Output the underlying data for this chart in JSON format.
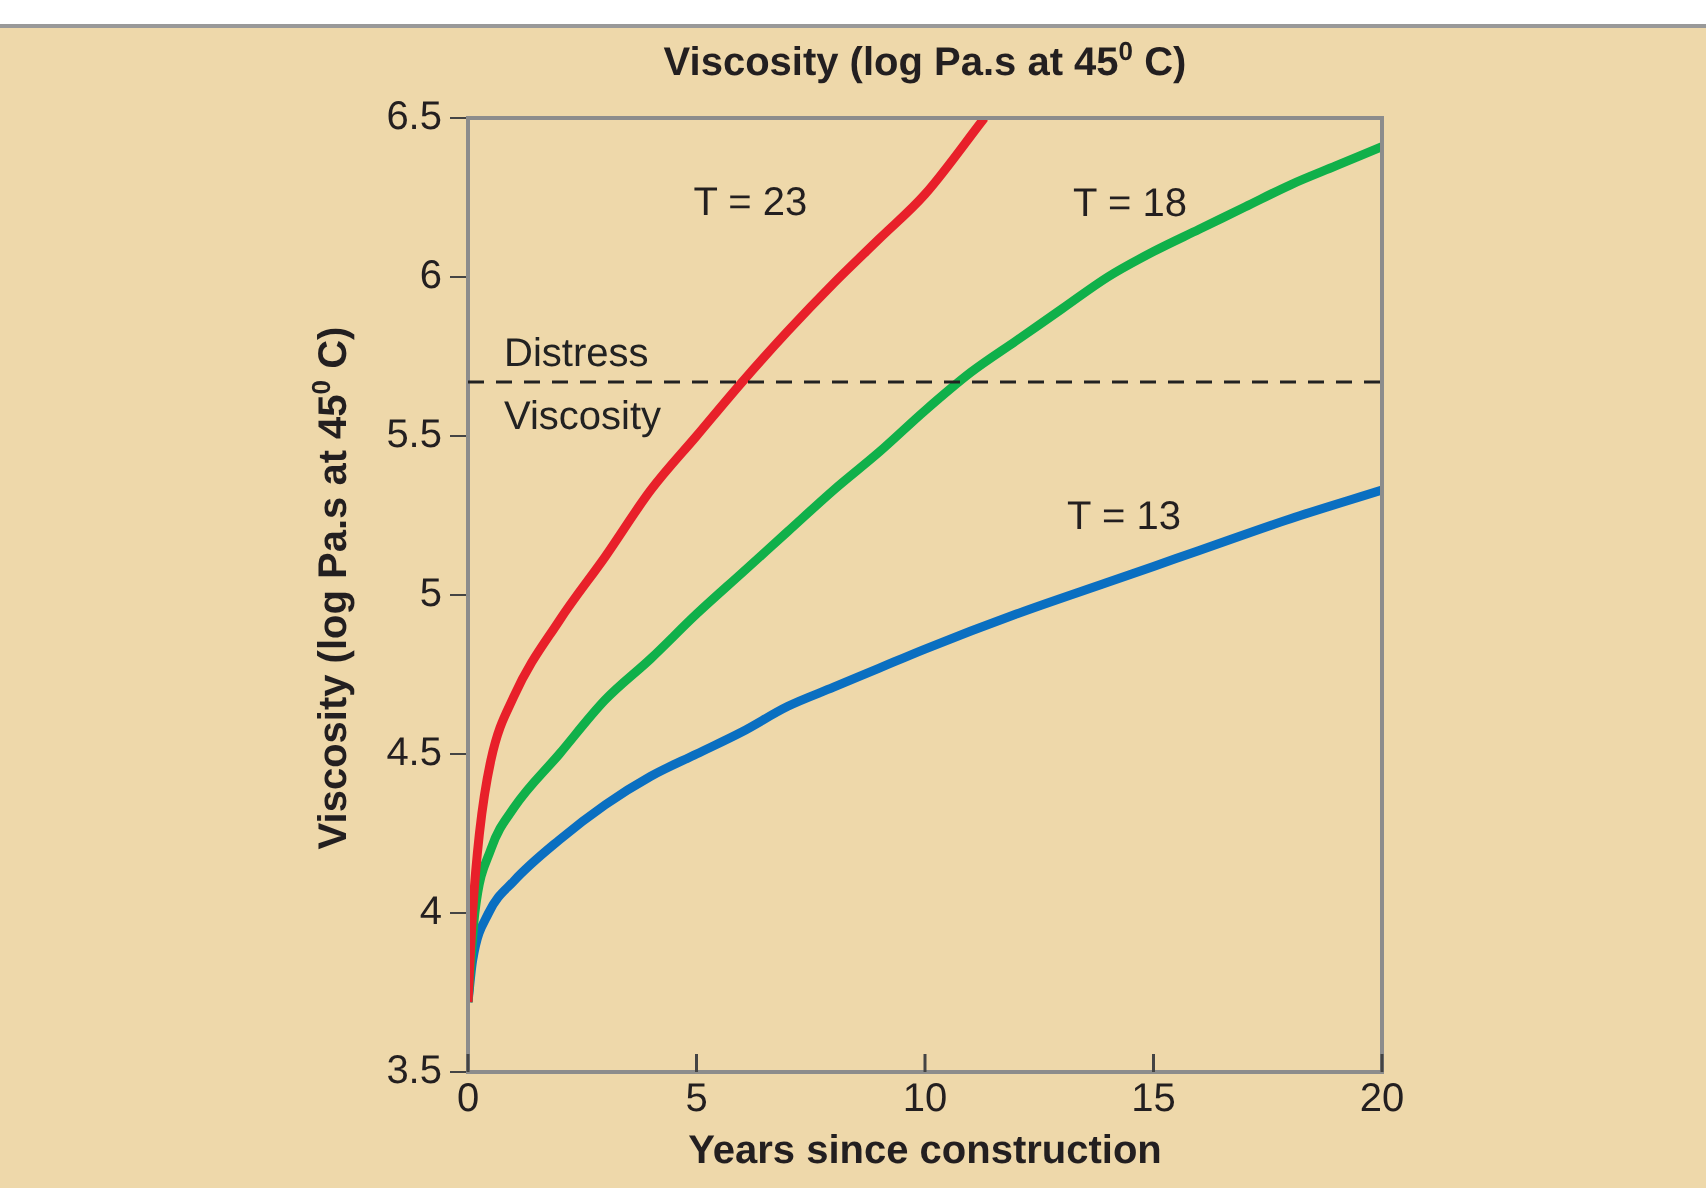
{
  "chart_data": {
    "type": "line",
    "title": "Viscosity (log Pa.s at 45$^{0}$ C)",
    "xlabel": "Years since construction",
    "ylabel": "Viscosity (log Pa.s at 45$^{0}$ C)",
    "xlim": [
      0,
      20
    ],
    "xticks": [
      0,
      5,
      10,
      15,
      20
    ],
    "ylim": [
      3.5,
      6.5
    ],
    "yticks": [
      3.5,
      4,
      4.5,
      5,
      5.5,
      6,
      6.5
    ],
    "grid": false,
    "legend": false,
    "marker": "none",
    "line_style": "solid",
    "ref_lines": [
      {
        "axis": "y",
        "value": 5.67,
        "label": "Distress Viscosity",
        "color": "#222222",
        "line_style": "dashed"
      }
    ],
    "series": [
      {
        "name": "T = 23",
        "color": "#e8202a",
        "x": [
          0,
          0.1,
          0.25,
          0.5,
          1,
          2,
          3,
          4,
          5,
          6,
          7,
          8,
          9,
          10,
          11.3
        ],
        "values": [
          3.72,
          4.0,
          4.25,
          4.48,
          4.68,
          4.92,
          5.12,
          5.33,
          5.5,
          5.67,
          5.83,
          5.98,
          6.12,
          6.26,
          6.5
        ]
      },
      {
        "name": "T = 18",
        "color": "#10b04a",
        "x": [
          0,
          0.15,
          0.5,
          1,
          2,
          3,
          4,
          5,
          6,
          7,
          8,
          9,
          10,
          11,
          12,
          13,
          14,
          15,
          16,
          17,
          18,
          19,
          20
        ],
        "values": [
          3.72,
          4.0,
          4.2,
          4.33,
          4.5,
          4.67,
          4.8,
          4.94,
          5.07,
          5.2,
          5.33,
          5.45,
          5.58,
          5.7,
          5.8,
          5.9,
          6.0,
          6.08,
          6.15,
          6.22,
          6.29,
          6.35,
          6.41
        ]
      },
      {
        "name": "T = 13",
        "color": "#0a6fc1",
        "x": [
          0,
          0.1,
          0.45,
          1,
          2,
          3,
          4,
          5,
          6,
          7,
          8,
          9,
          10,
          12,
          14,
          15,
          16,
          18,
          20
        ],
        "values": [
          3.72,
          3.85,
          4.0,
          4.1,
          4.23,
          4.34,
          4.43,
          4.5,
          4.57,
          4.65,
          4.71,
          4.77,
          4.83,
          4.94,
          5.04,
          5.09,
          5.14,
          5.24,
          5.33
        ]
      }
    ]
  }
}
